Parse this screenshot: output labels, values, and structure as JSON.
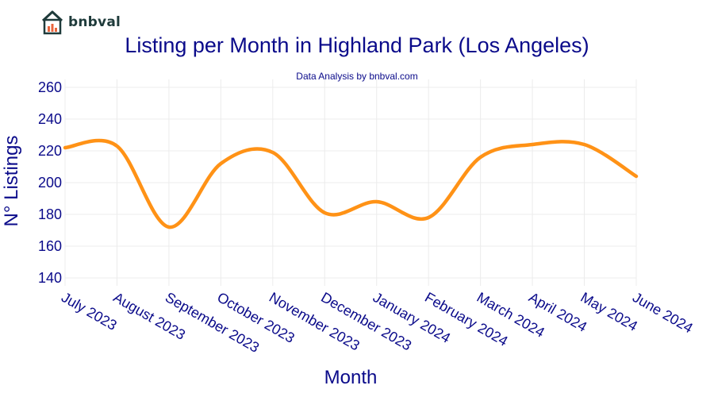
{
  "brand": {
    "name": "bnbval",
    "logo_icon": "house-chart-icon",
    "color": "#1f3b3b",
    "accent": "#e8643c"
  },
  "chart_data": {
    "type": "line",
    "title": "Listing per Month in Highland Park (Los Angeles)",
    "subtitle": "Data Analysis by bnbval.com",
    "xlabel": "Month",
    "ylabel": "N° Listings",
    "categories": [
      "July 2023",
      "August 2023",
      "September 2023",
      "October 2023",
      "November 2023",
      "December 2023",
      "January 2024",
      "February 2024",
      "March 2024",
      "April 2024",
      "May 2024",
      "June 2024"
    ],
    "series": [
      {
        "values": [
          222,
          223,
          172,
          212,
          219,
          181,
          188,
          178,
          216,
          224,
          224,
          204
        ],
        "color": "#ff9216"
      }
    ],
    "ylim": [
      135,
      265
    ],
    "yticks": [
      140,
      160,
      180,
      200,
      220,
      240,
      260
    ],
    "grid": true,
    "line_shape": "smooth"
  }
}
